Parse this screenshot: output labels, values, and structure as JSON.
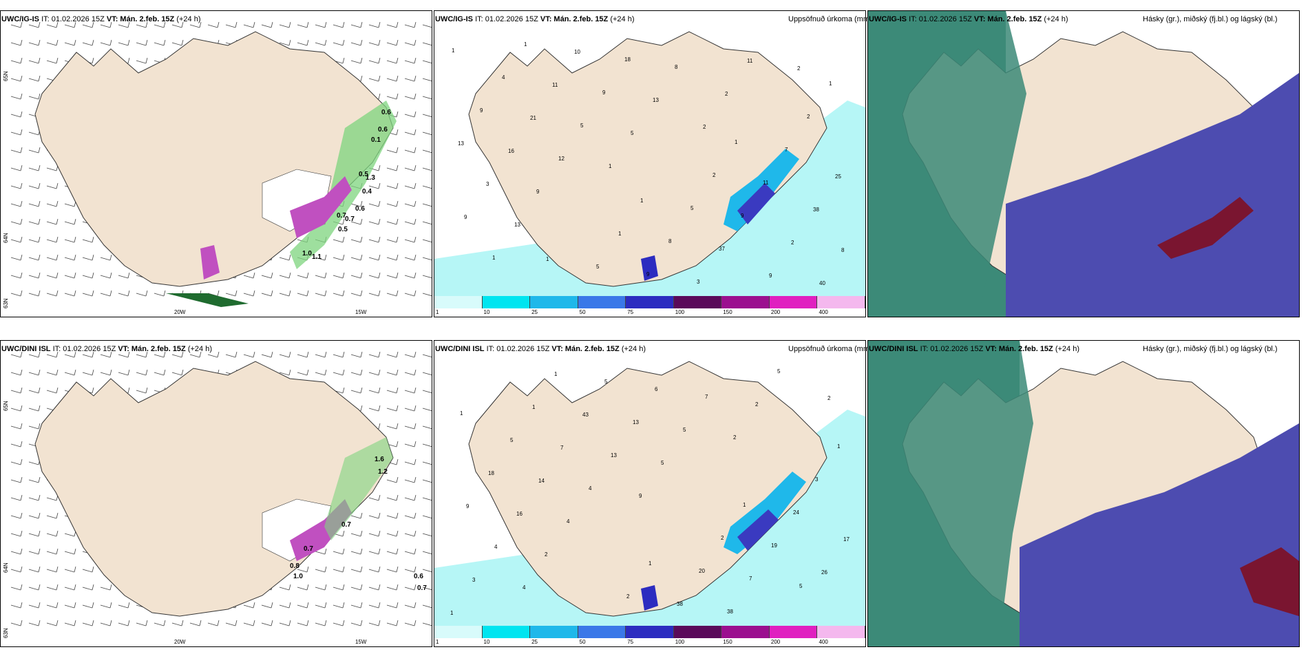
{
  "rows": [
    {
      "model": "UWC/IG-IS",
      "it_label": "IT: 01.02.2026 15Z",
      "vt_label": "VT: Mán. 2.feb. 15Z",
      "lead": "(+24 h)",
      "wind_values": [
        "0.6",
        "0.6",
        "0.1",
        "0.5",
        "0.7",
        "0.5",
        "1.0",
        "1.1",
        "0.7",
        "0.6",
        "1.3",
        "0.4"
      ],
      "precip_values": [
        "1",
        "1",
        "1",
        "1",
        "1",
        "1",
        "1",
        "2",
        "2",
        "4",
        "5",
        "5",
        "7",
        "9",
        "10",
        "8",
        "11",
        "13",
        "11",
        "9",
        "9",
        "25",
        "21",
        "18",
        "37",
        "38",
        "16",
        "9",
        "3",
        "2",
        "3",
        "5",
        "8",
        "9",
        "9",
        "12",
        "13",
        "11",
        "8",
        "9",
        "5",
        "2",
        "40",
        "13",
        "1",
        "2",
        "2",
        "1"
      ],
      "lat_labels": [
        "65N",
        "64N",
        "63N"
      ],
      "lon_labels": [
        "20W",
        "15W"
      ]
    },
    {
      "model": "UWC/DINI ISL",
      "it_label": "IT: 01.02.2026 15Z",
      "vt_label": "VT: Mán. 2.feb. 15Z",
      "lead": "(+24 h)",
      "wind_values": [
        "1.6",
        "1.2",
        "0.7",
        "0.6",
        "0.7",
        "1.0",
        "0.8",
        "0.7"
      ],
      "precip_values": [
        "1",
        "1",
        "1",
        "1",
        "1",
        "1",
        "2",
        "2",
        "3",
        "5",
        "5",
        "20",
        "24",
        "18",
        "43",
        "38",
        "19",
        "9",
        "7",
        "6",
        "7",
        "17",
        "14",
        "13",
        "38",
        "26",
        "16",
        "13",
        "7",
        "5",
        "4",
        "4",
        "5",
        "5",
        "3",
        "4",
        "5",
        "2",
        "1",
        "2",
        "9",
        "2",
        "2",
        "4"
      ],
      "lat_labels": [
        "65N",
        "64N",
        "63N"
      ],
      "lon_labels": [
        "20W",
        "15W"
      ]
    }
  ],
  "precip_title": "Uppsöfnuð úrkoma (mm)",
  "cloud_title": "Hásky (gr.), miðský (fj.bl.) og lágský (bl.)",
  "colorbar": {
    "ticks": [
      "1",
      "10",
      "25",
      "50",
      "75",
      "100",
      "150",
      "200",
      "400"
    ],
    "colors": [
      "#d8fbfb",
      "#00e5f0",
      "#1fb8ea",
      "#3a78e8",
      "#2c2cc0",
      "#5a0a5a",
      "#9b0f8f",
      "#e020c0",
      "#f4b8ee"
    ]
  },
  "colors": {
    "land": "#f2e3d1",
    "sea_precip": "#b6f6f6",
    "cloud_high": "#7a1530",
    "cloud_mid": "#4d4cb0",
    "cloud_low": "#3c8a78"
  }
}
